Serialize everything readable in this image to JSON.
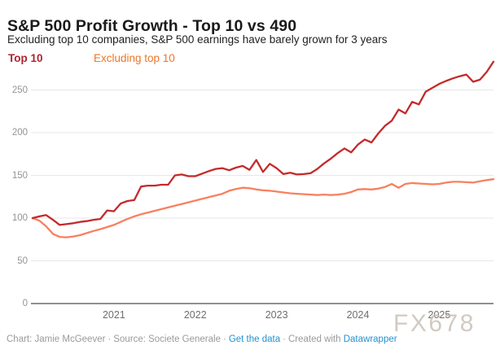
{
  "title": "S&P 500 Profit Growth - Top 10 vs 490",
  "subtitle": "Excluding top 10 companies, S&P 500 earnings have barely grown for 3 years",
  "legend": {
    "items": [
      {
        "label": "Top 10",
        "color": "#ab2430"
      },
      {
        "label": "Excluding top 10",
        "color": "#ee7626"
      }
    ]
  },
  "watermark": {
    "text": "FX678"
  },
  "footer": {
    "chart_credit": "Chart: Jamie McGeever",
    "source": "Source: Societe Generale",
    "get_data_label": "Get the data",
    "created_with": "Created with",
    "tool_label": "Datawrapper",
    "sep": "·",
    "link_color": "#2591d0"
  },
  "chart_data": {
    "type": "line",
    "title": "S&P 500 Profit Growth - Top 10 vs 490",
    "x_start": "2020-01",
    "x_end": "2025-09",
    "frequency": "monthly",
    "index_base": 100,
    "grid": "horizontal",
    "legend_position": "top-left",
    "ylim": [
      0,
      290
    ],
    "y_ticks": [
      0,
      50,
      100,
      150,
      200,
      250
    ],
    "x_tick_labels": [
      "2021",
      "2022",
      "2023",
      "2024",
      "2025"
    ],
    "x_tick_month_index": [
      12,
      24,
      36,
      48,
      60
    ],
    "series": [
      {
        "name": "Excluding top 10",
        "color": "#f8805f",
        "values": [
          100,
          97,
          90.5,
          81.5,
          78,
          77.5,
          78.5,
          80,
          82.5,
          85,
          87,
          89.5,
          92,
          95.5,
          99,
          102,
          104.5,
          106.5,
          108.5,
          110.5,
          112.5,
          114.5,
          116.5,
          118.5,
          120.5,
          122.5,
          124.5,
          126.5,
          128.5,
          132,
          134,
          135.5,
          135,
          133.5,
          132.5,
          132,
          131,
          130,
          129,
          128.5,
          128,
          127.5,
          127,
          127.5,
          127,
          127.5,
          128.5,
          130.5,
          133.5,
          134,
          133.5,
          134.5,
          136.5,
          140,
          135.5,
          140,
          141,
          140.5,
          140,
          139.5,
          140,
          141.5,
          142.5,
          142.5,
          142,
          141.5,
          143,
          144.5,
          145.5
        ]
      },
      {
        "name": "Top 10",
        "color": "#c42a2b",
        "values": [
          100,
          102,
          103.5,
          98,
          92,
          93,
          94,
          95.5,
          96.5,
          98,
          99,
          109,
          108,
          117,
          120,
          121,
          137,
          138,
          138,
          139,
          139,
          150,
          151,
          149,
          149,
          152,
          155,
          157.5,
          158.5,
          156,
          159,
          161,
          156.5,
          168,
          154,
          163.5,
          158.5,
          151.5,
          153,
          151,
          151.5,
          152.5,
          157.5,
          164,
          169.5,
          176,
          181.5,
          177,
          186,
          192,
          188.5,
          199,
          208,
          214,
          227,
          222.5,
          236,
          233,
          248,
          252.5,
          257,
          260.5,
          263.5,
          266,
          268,
          259.5,
          262,
          271,
          283
        ]
      }
    ]
  }
}
